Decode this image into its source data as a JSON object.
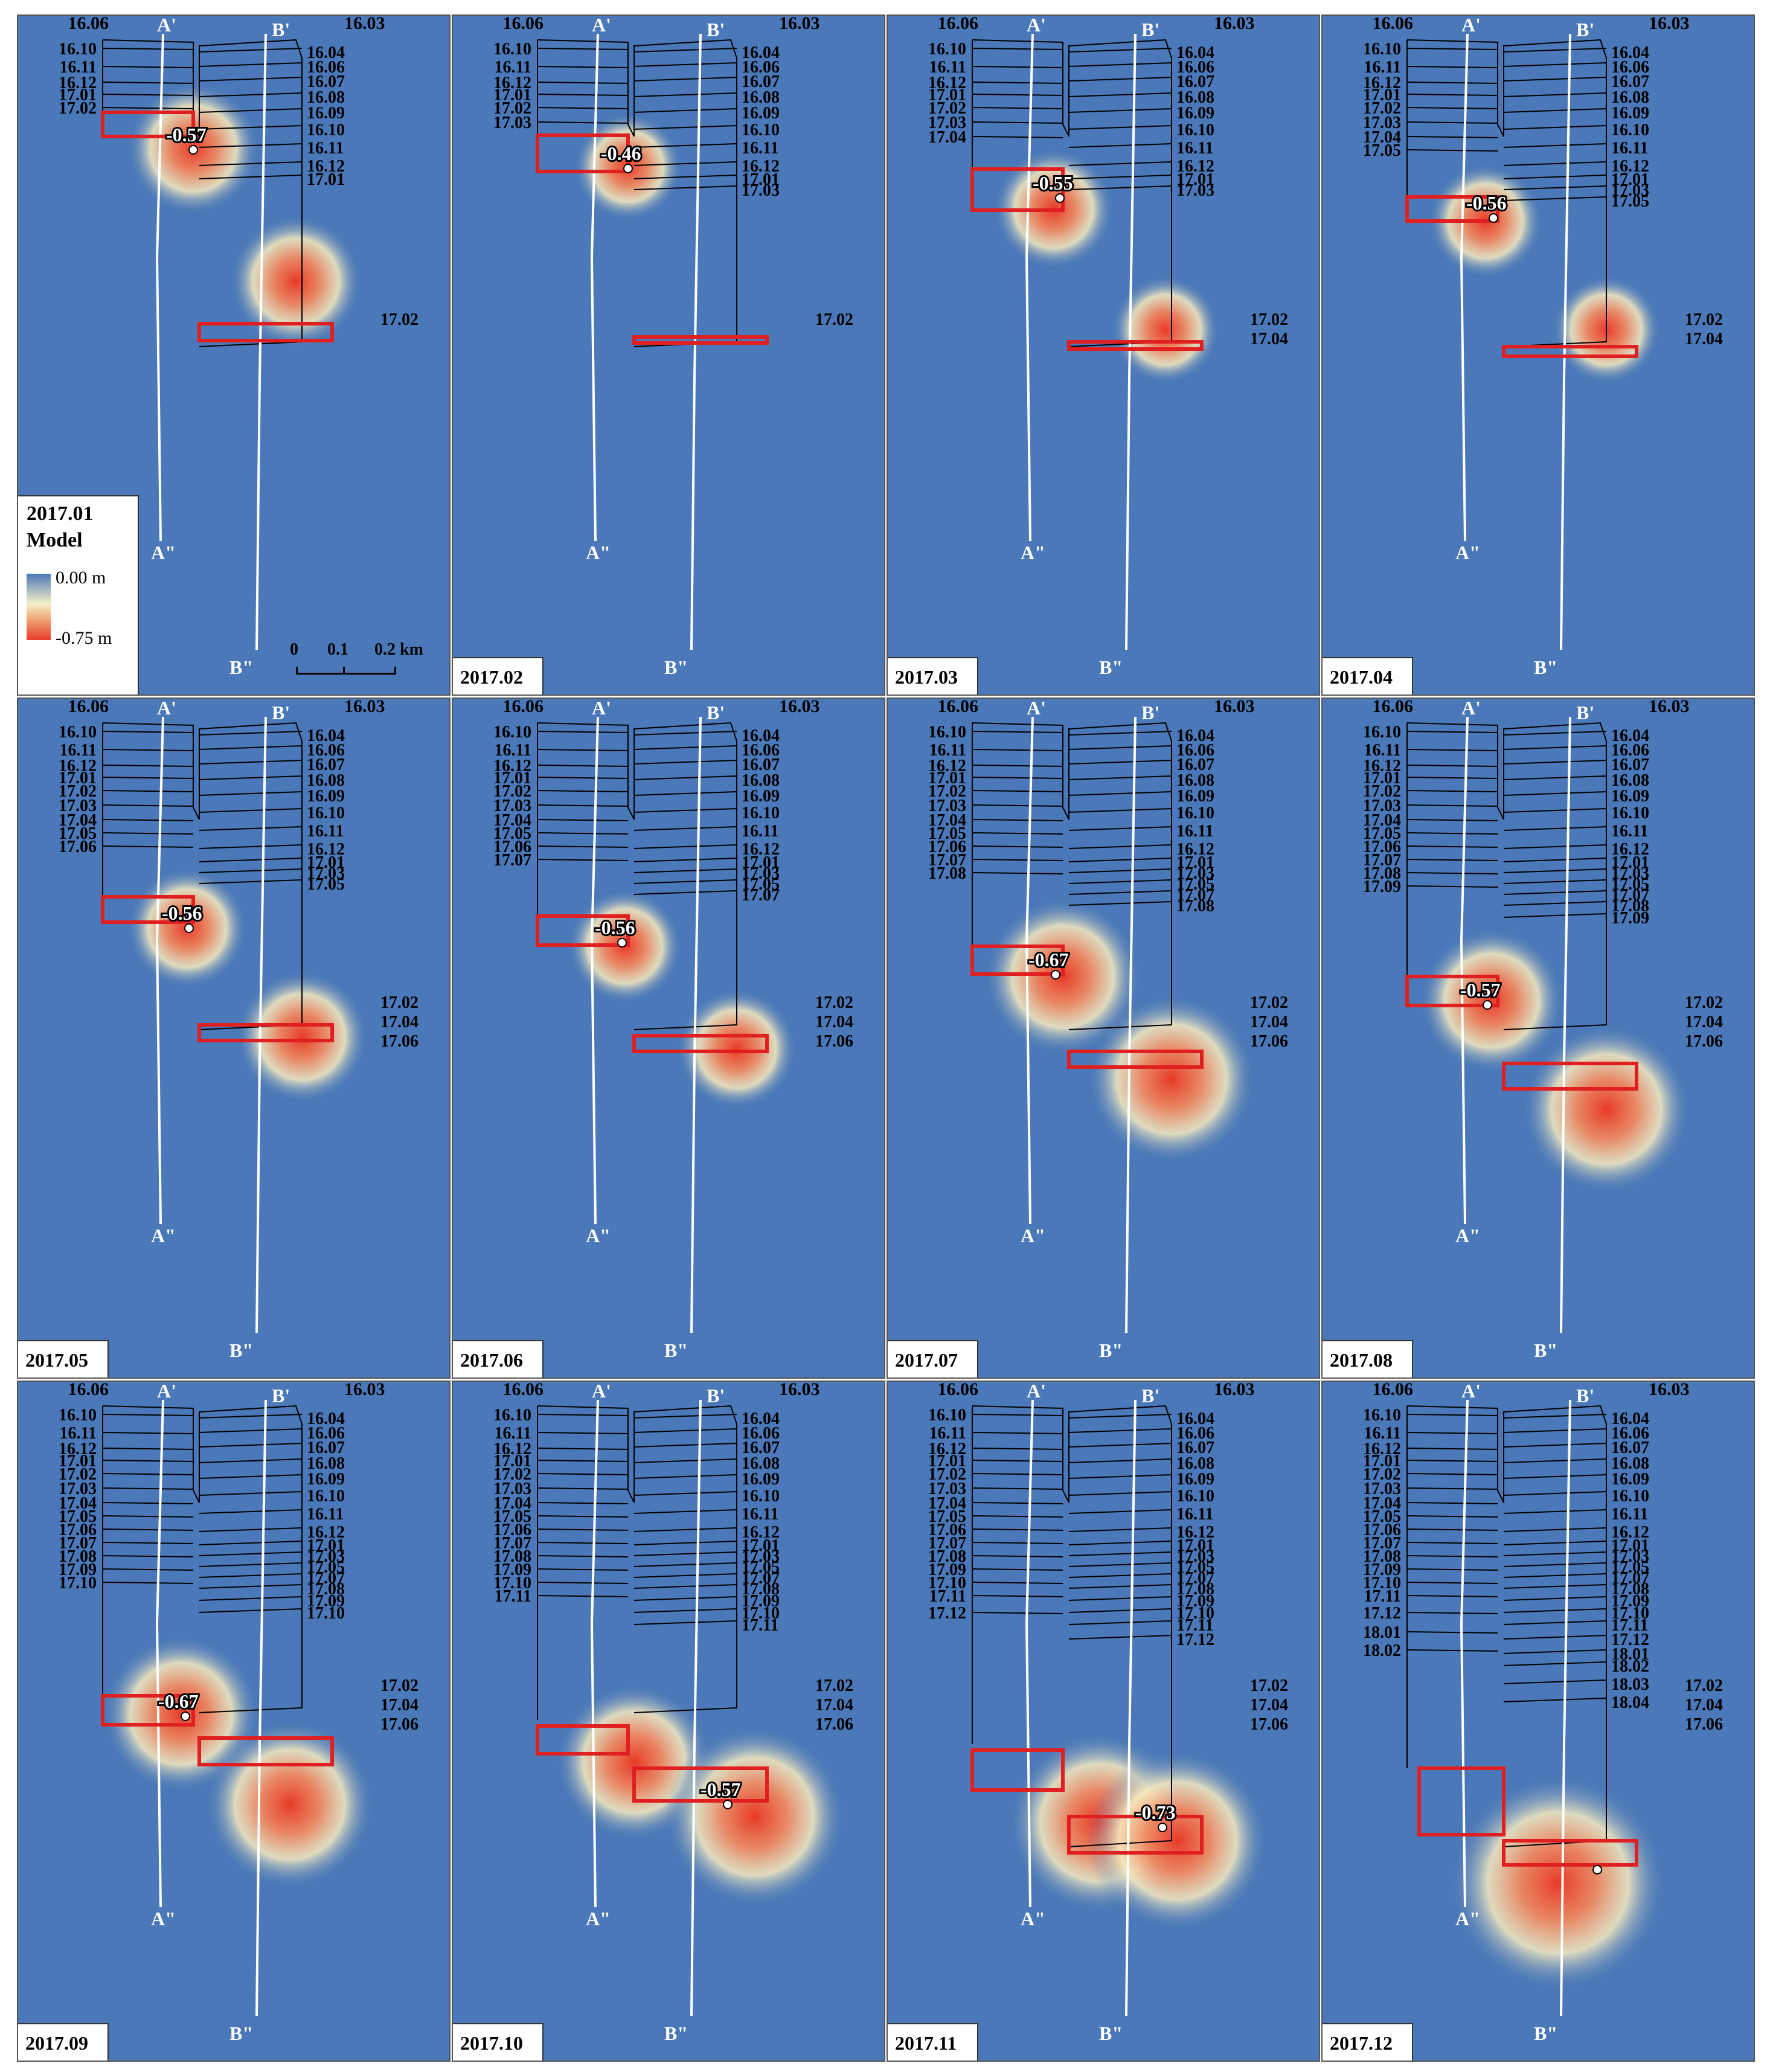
{
  "colors": {
    "background": "#4a78b8",
    "polygon_line": "#000000",
    "highlight": "#e02020",
    "profile_line": "#ffffff"
  },
  "legend": {
    "date": "2017.01",
    "title": "Model",
    "max": "0.00 m",
    "min": "-0.75 m"
  },
  "scale_bar": {
    "labels": [
      "0",
      "0.1",
      "0.2 km"
    ]
  },
  "profile_labels": {
    "a_top": "A'",
    "b_top": "B'",
    "a_bottom": "A\"",
    "b_bottom": "B\""
  },
  "panels": [
    {
      "date": "2017.01",
      "value": "-0.57",
      "left_labels": [
        "16.10",
        "16.11",
        "16.12",
        "17.01",
        "17.02"
      ],
      "right_labels": [
        "16.04",
        "16.06",
        "16.07",
        "16.08",
        "16.09",
        "16.10",
        "16.11",
        "16.12",
        "17.01"
      ],
      "right_outer_labels": [
        "17.02"
      ]
    },
    {
      "date": "2017.02",
      "value": "-0.46",
      "left_labels": [
        "16.10",
        "16.11",
        "16.12",
        "17.01",
        "17.02",
        "17.03"
      ],
      "right_labels": [
        "16.04",
        "16.06",
        "16.07",
        "16.08",
        "16.09",
        "16.10",
        "16.11",
        "16.12",
        "17.01",
        "17.03"
      ],
      "right_outer_labels": [
        "17.02"
      ]
    },
    {
      "date": "2017.03",
      "value": "-0.55",
      "left_labels": [
        "16.10",
        "16.11",
        "16.12",
        "17.01",
        "17.02",
        "17.03",
        "17.04"
      ],
      "right_labels": [
        "16.04",
        "16.06",
        "16.07",
        "16.08",
        "16.09",
        "16.10",
        "16.11",
        "16.12",
        "17.01",
        "17.03"
      ],
      "right_outer_labels": [
        "17.02",
        "17.04"
      ]
    },
    {
      "date": "2017.04",
      "value": "-0.56",
      "left_labels": [
        "16.10",
        "16.11",
        "16.12",
        "17.01",
        "17.02",
        "17.03",
        "17.04",
        "17.05"
      ],
      "right_labels": [
        "16.04",
        "16.06",
        "16.07",
        "16.08",
        "16.09",
        "16.10",
        "16.11",
        "16.12",
        "17.01",
        "17.03",
        "17.05"
      ],
      "right_outer_labels": [
        "17.02",
        "17.04"
      ]
    },
    {
      "date": "2017.05",
      "value": "-0.56",
      "left_labels": [
        "16.10",
        "16.11",
        "16.12",
        "17.01",
        "17.02",
        "17.03",
        "17.04",
        "17.05",
        "17.06"
      ],
      "right_labels": [
        "16.04",
        "16.06",
        "16.07",
        "16.08",
        "16.09",
        "16.10",
        "16.11",
        "16.12",
        "17.01",
        "17.03",
        "17.05"
      ],
      "right_outer_labels": [
        "17.02",
        "17.04",
        "17.06"
      ]
    },
    {
      "date": "2017.06",
      "value": "-0.56",
      "left_labels": [
        "16.10",
        "16.11",
        "16.12",
        "17.01",
        "17.02",
        "17.03",
        "17.04",
        "17.05",
        "17.06",
        "17.07"
      ],
      "right_labels": [
        "16.04",
        "16.06",
        "16.07",
        "16.08",
        "16.09",
        "16.10",
        "16.11",
        "16.12",
        "17.01",
        "17.03",
        "17.05",
        "17.07"
      ],
      "right_outer_labels": [
        "17.02",
        "17.04",
        "17.06"
      ]
    },
    {
      "date": "2017.07",
      "value": "-0.67",
      "left_labels": [
        "16.10",
        "16.11",
        "16.12",
        "17.01",
        "17.02",
        "17.03",
        "17.04",
        "17.05",
        "17.06",
        "17.07",
        "17.08"
      ],
      "right_labels": [
        "16.04",
        "16.06",
        "16.07",
        "16.08",
        "16.09",
        "16.10",
        "16.11",
        "16.12",
        "17.01",
        "17.03",
        "17.05",
        "17.07",
        "17.08"
      ],
      "right_outer_labels": [
        "17.02",
        "17.04",
        "17.06"
      ]
    },
    {
      "date": "2017.08",
      "value": "-0.57",
      "left_labels": [
        "16.10",
        "16.11",
        "16.12",
        "17.01",
        "17.02",
        "17.03",
        "17.04",
        "17.05",
        "17.06",
        "17.07",
        "17.08",
        "17.09"
      ],
      "right_labels": [
        "16.04",
        "16.06",
        "16.07",
        "16.08",
        "16.09",
        "16.10",
        "16.11",
        "16.12",
        "17.01",
        "17.03",
        "17.05",
        "17.07",
        "17.08",
        "17.09"
      ],
      "right_outer_labels": [
        "17.02",
        "17.04",
        "17.06"
      ]
    },
    {
      "date": "2017.09",
      "value": "-0.67",
      "left_labels": [
        "16.10",
        "16.11",
        "16.12",
        "17.01",
        "17.02",
        "17.03",
        "17.04",
        "17.05",
        "17.06",
        "17.07",
        "17.08",
        "17.09",
        "17.10"
      ],
      "right_labels": [
        "16.04",
        "16.06",
        "16.07",
        "16.08",
        "16.09",
        "16.10",
        "16.11",
        "16.12",
        "17.01",
        "17.03",
        "17.05",
        "17.07",
        "17.08",
        "17.09",
        "17.10"
      ],
      "right_outer_labels": [
        "17.02",
        "17.04",
        "17.06"
      ]
    },
    {
      "date": "2017.10",
      "value": "-0.57",
      "left_labels": [
        "16.10",
        "16.11",
        "16.12",
        "17.01",
        "17.02",
        "17.03",
        "17.04",
        "17.05",
        "17.06",
        "17.07",
        "17.08",
        "17.09",
        "17.10",
        "17.11"
      ],
      "right_labels": [
        "16.04",
        "16.06",
        "16.07",
        "16.08",
        "16.09",
        "16.10",
        "16.11",
        "16.12",
        "17.01",
        "17.03",
        "17.05",
        "17.07",
        "17.08",
        "17.09",
        "17.10",
        "17.11"
      ],
      "right_outer_labels": [
        "17.02",
        "17.04",
        "17.06"
      ]
    },
    {
      "date": "2017.11",
      "value": "-0.73",
      "left_labels": [
        "16.10",
        "16.11",
        "16.12",
        "17.01",
        "17.02",
        "17.03",
        "17.04",
        "17.05",
        "17.06",
        "17.07",
        "17.08",
        "17.09",
        "17.10",
        "17.11",
        "17.12"
      ],
      "right_labels": [
        "16.04",
        "16.06",
        "16.07",
        "16.08",
        "16.09",
        "16.10",
        "16.11",
        "16.12",
        "17.01",
        "17.03",
        "17.05",
        "17.07",
        "17.08",
        "17.09",
        "17.10",
        "17.11",
        "17.12"
      ],
      "right_outer_labels": [
        "17.02",
        "17.04",
        "17.06"
      ]
    },
    {
      "date": "2017.12",
      "value": "",
      "left_labels": [
        "16.10",
        "16.11",
        "16.12",
        "17.01",
        "17.02",
        "17.03",
        "17.04",
        "17.05",
        "17.06",
        "17.07",
        "17.08",
        "17.09",
        "17.10",
        "17.11",
        "17.12",
        "18.01",
        "18.02"
      ],
      "right_labels": [
        "16.04",
        "16.06",
        "16.07",
        "16.08",
        "16.09",
        "16.10",
        "16.11",
        "16.12",
        "17.01",
        "17.03",
        "17.05",
        "17.07",
        "17.08",
        "17.09",
        "17.10",
        "17.11",
        "17.12",
        "18.01",
        "18.02",
        "18.03",
        "18.04"
      ],
      "right_outer_labels": [
        "17.02",
        "17.04",
        "17.06"
      ]
    }
  ],
  "top_labels": {
    "a_left": "16.06",
    "b_right": "16.03"
  }
}
